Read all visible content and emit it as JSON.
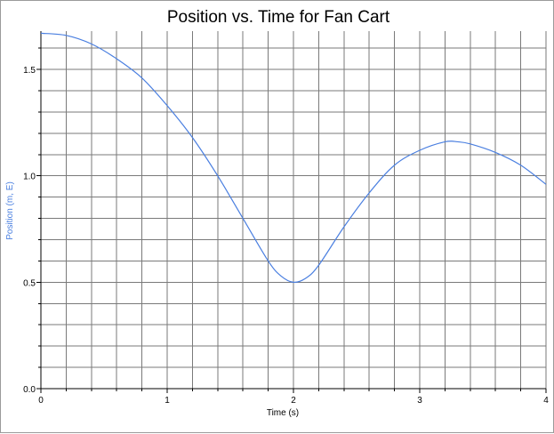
{
  "chart_data": {
    "type": "line",
    "title": "Position vs. Time for Fan Cart",
    "xlabel": "Time (s)",
    "ylabel": "Position (m, E)",
    "xlim": [
      0,
      4
    ],
    "ylim": [
      0,
      1.68
    ],
    "x_ticks": [
      "0",
      "1",
      "2",
      "3",
      "4"
    ],
    "y_ticks": [
      "0.0",
      "0.5",
      "1.0",
      "1.5"
    ],
    "grid": true,
    "colors": {
      "series": "#4a7fe0",
      "ylabel": "#4a7fe0",
      "grid": "#7a7a7a",
      "axis": "#000000"
    },
    "series": [
      {
        "x": [
          0,
          0.2,
          0.4,
          0.6,
          0.8,
          1.0,
          1.2,
          1.4,
          1.6,
          1.8,
          1.9,
          2.0,
          2.1,
          2.2,
          2.4,
          2.6,
          2.8,
          3.0,
          3.2,
          3.3,
          3.4,
          3.6,
          3.8,
          4.0
        ],
        "y": [
          1.67,
          1.66,
          1.62,
          1.55,
          1.46,
          1.33,
          1.18,
          1.0,
          0.8,
          0.6,
          0.53,
          0.5,
          0.52,
          0.58,
          0.76,
          0.92,
          1.05,
          1.12,
          1.16,
          1.16,
          1.15,
          1.11,
          1.05,
          0.96
        ]
      }
    ]
  }
}
